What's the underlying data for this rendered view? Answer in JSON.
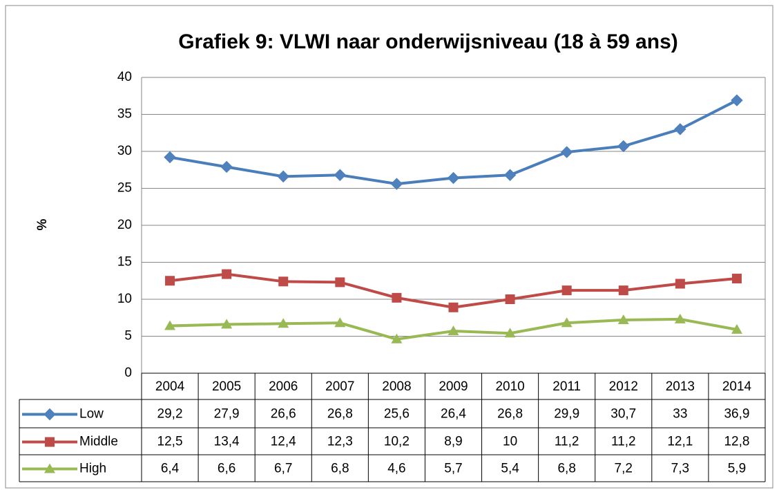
{
  "chart_data": {
    "type": "line",
    "title": "Grafiek 9: VLWI naar onderwijsniveau (18 à 59 ans)",
    "y_label": "%",
    "categories": [
      "2004",
      "2005",
      "2006",
      "2007",
      "2008",
      "2009",
      "2010",
      "2011",
      "2012",
      "2013",
      "2014"
    ],
    "series": [
      {
        "name": "Low",
        "color": "#4a7ebb",
        "marker": "diamond",
        "values": [
          29.2,
          27.9,
          26.6,
          26.8,
          25.6,
          26.4,
          26.8,
          29.9,
          30.7,
          33,
          36.9
        ],
        "value_labels": [
          "29,2",
          "27,9",
          "26,6",
          "26,8",
          "25,6",
          "26,4",
          "26,8",
          "29,9",
          "30,7",
          "33",
          "36,9"
        ]
      },
      {
        "name": "Middle",
        "color": "#be4b48",
        "marker": "square",
        "values": [
          12.5,
          13.4,
          12.4,
          12.3,
          10.2,
          8.9,
          10,
          11.2,
          11.2,
          12.1,
          12.8
        ],
        "value_labels": [
          "12,5",
          "13,4",
          "12,4",
          "12,3",
          "10,2",
          "8,9",
          "10",
          "11,2",
          "11,2",
          "12,1",
          "12,8"
        ]
      },
      {
        "name": "High",
        "color": "#98b954",
        "marker": "triangle",
        "values": [
          6.4,
          6.6,
          6.7,
          6.8,
          4.6,
          5.7,
          5.4,
          6.8,
          7.2,
          7.3,
          5.9
        ],
        "value_labels": [
          "6,4",
          "6,6",
          "6,7",
          "6,8",
          "4,6",
          "5,7",
          "5,4",
          "6,8",
          "7,2",
          "7,3",
          "5,9"
        ]
      }
    ],
    "ylim": [
      0,
      40
    ],
    "yticks": [
      0,
      5,
      10,
      15,
      20,
      25,
      30,
      35,
      40
    ],
    "grid": true
  }
}
